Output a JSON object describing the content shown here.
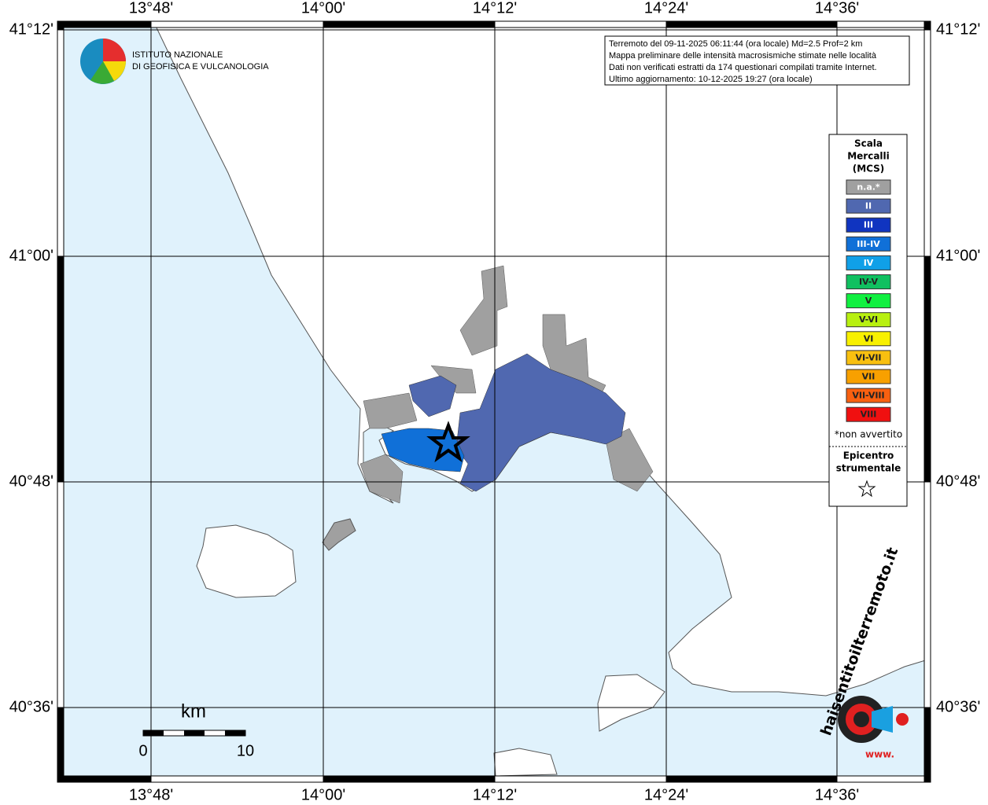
{
  "info_box": {
    "lines": [
      "Terremoto del 09-11-2025 06:11:44 (ora locale) Md=2.5 Prof=2 km",
      "Mappa preliminare delle intensità macrosismiche stimate nelle località",
      "Dati non verificati estratti da 174 questionari compilati tramite Internet.",
      "Ultimo aggiornamento: 10-12-2025 19:27 (ora locale)"
    ]
  },
  "logo": {
    "lines": [
      "ISTITUTO NAZIONALE",
      "DI GEOFISICA E VULCANOLOGIA"
    ]
  },
  "longitudes": [
    "13°48'",
    "14°00'",
    "14°12'",
    "14°24'",
    "14°36'"
  ],
  "latitudes": [
    "41°12'",
    "41°00'",
    "40°48'",
    "40°36'"
  ],
  "legend": {
    "title": [
      "Scala",
      "Mercalli",
      "(MCS)"
    ],
    "items": [
      {
        "label": "n.a.*",
        "color": "#a0a0a0"
      },
      {
        "label": "II",
        "color": "#5068b0"
      },
      {
        "label": "III",
        "color": "#1034c0"
      },
      {
        "label": "III-IV",
        "color": "#1070d8"
      },
      {
        "label": "IV",
        "color": "#10a0e8"
      },
      {
        "label": "IV-V",
        "color": "#10c060"
      },
      {
        "label": "V",
        "color": "#10f040"
      },
      {
        "label": "V-VI",
        "color": "#b8f010"
      },
      {
        "label": "VI",
        "color": "#f8f000"
      },
      {
        "label": "VI-VII",
        "color": "#f8c010"
      },
      {
        "label": "VII",
        "color": "#f8a000"
      },
      {
        "label": "VII-VIII",
        "color": "#f86010"
      },
      {
        "label": "VIII",
        "color": "#f01010"
      }
    ],
    "note": "*non avvertito",
    "epicenter": [
      "Epicentro",
      "strumentale"
    ]
  },
  "scale": {
    "unit": "km",
    "start": "0",
    "end": "10"
  },
  "badge": {
    "text": "haisentitoilterremoto.it",
    "www": "www."
  }
}
